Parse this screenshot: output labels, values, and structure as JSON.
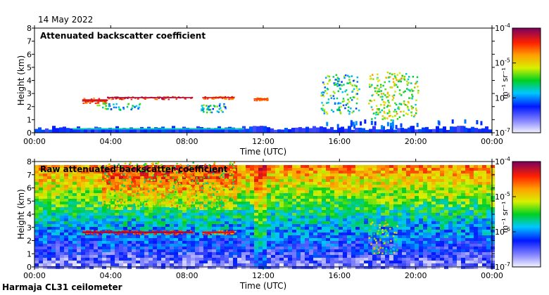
{
  "header": {
    "date": "14 May 2022"
  },
  "footer": {
    "station": "Harmaja CL31 ceilometer"
  },
  "chart_data": [
    {
      "type": "heatmap",
      "title": "Attenuated backscatter coefficient",
      "xlabel": "Time (UTC)",
      "ylabel": "Height (km)",
      "xlim": [
        0,
        24
      ],
      "ylim": [
        0,
        8
      ],
      "x_ticks": [
        0,
        4,
        8,
        12,
        16,
        20,
        24
      ],
      "x_tick_labels": [
        "00:00",
        "04:00",
        "08:00",
        "12:00",
        "16:00",
        "20:00",
        "00:00"
      ],
      "y_ticks": [
        0,
        1,
        2,
        3,
        4,
        5,
        6,
        7,
        8
      ],
      "y_tick_labels": [
        "0",
        "1",
        "2",
        "3",
        "4",
        "5",
        "6",
        "7",
        "8"
      ],
      "colorbar": {
        "label": "m⁻¹ sr⁻¹",
        "ticks": [
          {
            "base": "10",
            "exp": "-4"
          },
          {
            "base": "10",
            "exp": "-5"
          },
          {
            "base": "10",
            "exp": "-6"
          },
          {
            "base": "10",
            "exp": "-7"
          }
        ]
      },
      "features": [
        {
          "name": "cloud layer",
          "t_start": 2.5,
          "t_end": 3.8,
          "h_start": 2.3,
          "h_end": 2.7,
          "level": 0.9
        },
        {
          "name": "cloud layer",
          "t_start": 3.8,
          "t_end": 8.3,
          "h_start": 2.6,
          "h_end": 2.8,
          "level": 0.95
        },
        {
          "name": "cloud layer",
          "t_start": 8.8,
          "t_end": 10.5,
          "h_start": 2.6,
          "h_end": 2.8,
          "level": 0.9
        },
        {
          "name": "cloud layer",
          "t_start": 11.5,
          "t_end": 12.2,
          "h_start": 2.5,
          "h_end": 2.7,
          "level": 0.85
        },
        {
          "name": "cloud fragments",
          "t_start": 3.2,
          "t_end": 5.5,
          "h_start": 1.8,
          "h_end": 2.3,
          "level": 0.6
        },
        {
          "name": "cloud fragments",
          "t_start": 8.7,
          "t_end": 10.0,
          "h_start": 1.6,
          "h_end": 2.3,
          "level": 0.6
        },
        {
          "name": "mid-level cloud",
          "t_start": 17.5,
          "t_end": 20.1,
          "h_start": 1.0,
          "h_end": 4.7,
          "level": 0.75
        },
        {
          "name": "mid-level cloud",
          "t_start": 15.0,
          "t_end": 17.0,
          "h_start": 1.5,
          "h_end": 4.5,
          "level": 0.65
        },
        {
          "name": "boundary layer",
          "t_start": 0,
          "t_end": 24,
          "h_start": 0,
          "h_end": 0.5,
          "level": 0.3
        }
      ]
    },
    {
      "type": "heatmap",
      "title": "Raw attenuated backscatter coefficient",
      "xlabel": "Time (UTC)",
      "ylabel": "Height (km)",
      "xlim": [
        0,
        24
      ],
      "ylim": [
        0,
        8
      ],
      "x_ticks": [
        0,
        4,
        8,
        12,
        16,
        20,
        24
      ],
      "x_tick_labels": [
        "00:00",
        "04:00",
        "08:00",
        "12:00",
        "16:00",
        "20:00",
        "00:00"
      ],
      "y_ticks": [
        0,
        1,
        2,
        3,
        4,
        5,
        6,
        7,
        8
      ],
      "y_tick_labels": [
        "0",
        "1",
        "2",
        "3",
        "4",
        "5",
        "6",
        "7",
        "8"
      ],
      "colorbar": {
        "label": "m⁻¹ sr⁻¹",
        "ticks": [
          {
            "base": "10",
            "exp": "-4"
          },
          {
            "base": "10",
            "exp": "-5"
          },
          {
            "base": "10",
            "exp": "-6"
          },
          {
            "base": "10",
            "exp": "-7"
          }
        ]
      },
      "features": [
        {
          "name": "cloud layer",
          "t_start": 2.5,
          "t_end": 8.3,
          "h_start": 2.5,
          "h_end": 2.8,
          "level": 0.95
        },
        {
          "name": "cloud layer",
          "t_start": 8.8,
          "t_end": 10.5,
          "h_start": 2.5,
          "h_end": 2.8,
          "level": 0.9
        },
        {
          "name": "noisy upper air",
          "t_start": 3.5,
          "t_end": 10.5,
          "h_start": 4.5,
          "h_end": 8.0,
          "level": 0.8
        },
        {
          "name": "mid-level cloud",
          "t_start": 17.5,
          "t_end": 19.0,
          "h_start": 1.0,
          "h_end": 3.5,
          "level": 0.75
        }
      ]
    }
  ]
}
